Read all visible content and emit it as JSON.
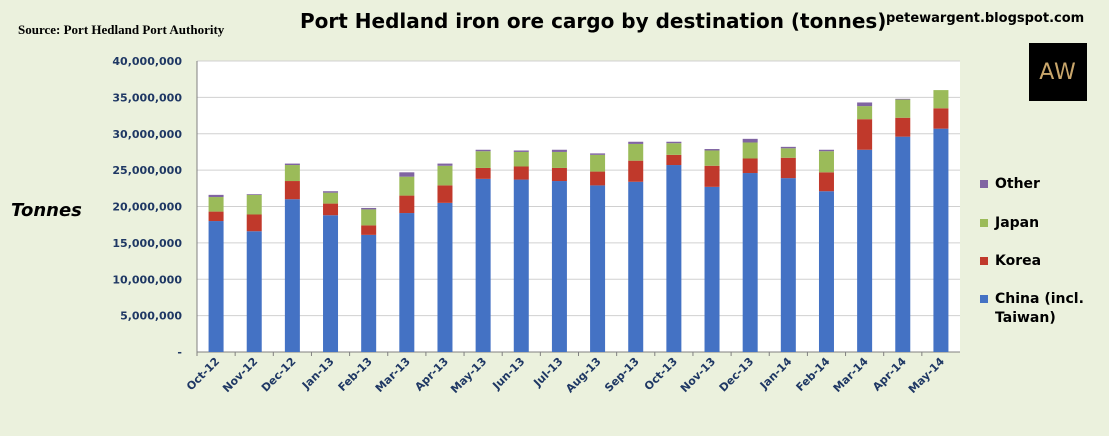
{
  "header": {
    "source": "Source: Port Hedland Port Authority",
    "title": "Port Hedland iron ore cargo by destination (tonnes)",
    "blog": "petewargent.blogspot.com",
    "logo_text": "AW"
  },
  "chart_data": {
    "type": "bar",
    "stacked": true,
    "title": "Port Hedland iron ore cargo by destination (tonnes)",
    "ylabel": "Tonnes",
    "xlabel": "",
    "ylim": [
      0,
      40000000
    ],
    "yticks": [
      0,
      5000000,
      10000000,
      15000000,
      20000000,
      25000000,
      30000000,
      35000000,
      40000000
    ],
    "ytick_labels": [
      "-",
      "5,000,000",
      "10,000,000",
      "15,000,000",
      "20,000,000",
      "25,000,000",
      "30,000,000",
      "35,000,000",
      "40,000,000"
    ],
    "grid": true,
    "legend_position": "right",
    "categories": [
      "Oct-12",
      "Nov-12",
      "Dec-12",
      "Jan-13",
      "Feb-13",
      "Mar-13",
      "Apr-13",
      "May-13",
      "Jun-13",
      "Jul-13",
      "Aug-13",
      "Sep-13",
      "Oct-13",
      "Nov-13",
      "Dec-13",
      "Jan-14",
      "Feb-14",
      "Mar-14",
      "Apr-14",
      "May-14"
    ],
    "series": [
      {
        "name": "China (incl. Taiwan)",
        "color": "#4472c4",
        "values": [
          18000000,
          16600000,
          21000000,
          18800000,
          16100000,
          19100000,
          20500000,
          23800000,
          23700000,
          23500000,
          22900000,
          23400000,
          25700000,
          22700000,
          24600000,
          23900000,
          22100000,
          27800000,
          29600000,
          30700000
        ]
      },
      {
        "name": "Korea",
        "color": "#c0392b",
        "values": [
          1300000,
          2300000,
          2500000,
          1600000,
          1300000,
          2400000,
          2400000,
          1500000,
          1800000,
          1800000,
          1900000,
          2900000,
          1400000,
          2900000,
          2000000,
          2800000,
          2600000,
          4200000,
          2600000,
          2800000
        ]
      },
      {
        "name": "Japan",
        "color": "#9bbb59",
        "values": [
          2000000,
          2700000,
          2200000,
          1500000,
          2200000,
          2600000,
          2700000,
          2300000,
          2000000,
          2200000,
          2300000,
          2300000,
          1600000,
          2100000,
          2200000,
          1300000,
          2900000,
          1800000,
          2500000,
          2500000
        ]
      },
      {
        "name": "Other",
        "color": "#8064a2",
        "values": [
          300000,
          100000,
          200000,
          200000,
          200000,
          600000,
          300000,
          200000,
          200000,
          300000,
          200000,
          300000,
          200000,
          200000,
          500000,
          200000,
          200000,
          500000,
          100000,
          0
        ]
      }
    ]
  },
  "legend": [
    {
      "label": "Other",
      "color": "#8064a2"
    },
    {
      "label": "Japan",
      "color": "#9bbb59"
    },
    {
      "label": "Korea",
      "color": "#c0392b"
    },
    {
      "label": "China (incl.",
      "label2": "Taiwan)",
      "color": "#4472c4"
    }
  ]
}
